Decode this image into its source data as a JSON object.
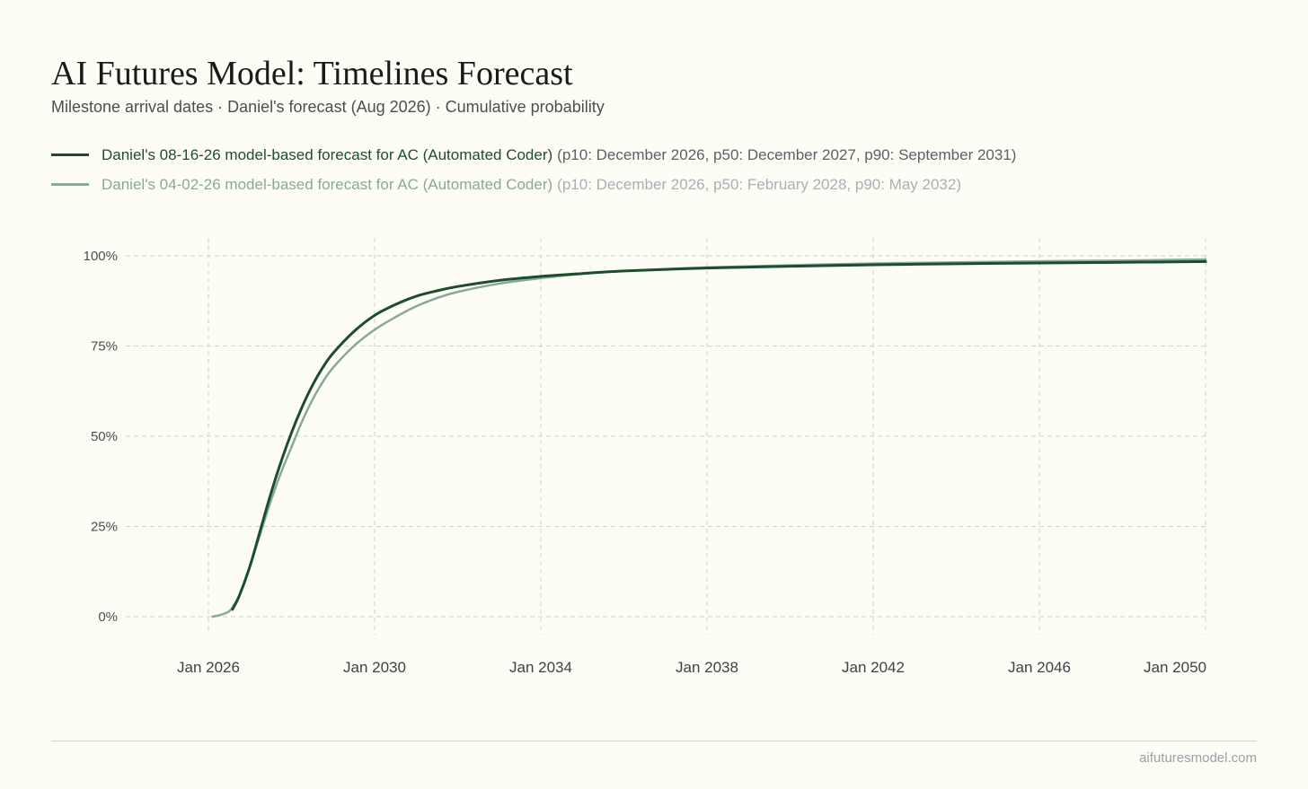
{
  "header": {
    "title": "AI Futures Model: Timelines Forecast",
    "subtitle": "Milestone arrival dates · Daniel's forecast (Aug 2026) · Cumulative probability"
  },
  "legend": [
    {
      "name": "Daniel's 08-16-26 model-based forecast for AC (Automated Coder)",
      "stats": "(p10: December 2026, p50: December 2027, p90: September 2031)",
      "color": "#1e4d2b"
    },
    {
      "name": "Daniel's 04-02-26 model-based forecast for AC (Automated Coder)",
      "stats": "(p10: December 2026, p50: February 2028, p90: May 2032)",
      "color": "#8aa89a"
    }
  ],
  "chart_data": {
    "type": "line",
    "xlabel": "",
    "ylabel": "",
    "xlim": [
      2025.8,
      2050.2
    ],
    "ylim": [
      0,
      100
    ],
    "x_ticks": [
      {
        "value": 2026,
        "label": "Jan 2026"
      },
      {
        "value": 2030,
        "label": "Jan 2030"
      },
      {
        "value": 2034,
        "label": "Jan 2034"
      },
      {
        "value": 2038,
        "label": "Jan 2038"
      },
      {
        "value": 2042,
        "label": "Jan 2042"
      },
      {
        "value": 2046,
        "label": "Jan 2046"
      },
      {
        "value": 2050,
        "label": "Jan 2050"
      }
    ],
    "y_ticks": [
      {
        "value": 0,
        "label": "0%"
      },
      {
        "value": 25,
        "label": "25%"
      },
      {
        "value": 50,
        "label": "50%"
      },
      {
        "value": 75,
        "label": "75%"
      },
      {
        "value": 100,
        "label": "100%"
      }
    ],
    "grid": true,
    "legend_position": "top-left",
    "series": [
      {
        "name": "Daniel's 08-16-26 model-based forecast for AC (Automated Coder)",
        "color": "#1e4d2b",
        "x": [
          2026.58,
          2026.75,
          2027.0,
          2027.25,
          2027.5,
          2027.75,
          2028.0,
          2028.25,
          2028.5,
          2028.75,
          2029.0,
          2029.5,
          2030.0,
          2030.5,
          2031.0,
          2031.5,
          2032.0,
          2033.0,
          2034.0,
          2035.0,
          2036.0,
          2038.0,
          2040.0,
          2042.0,
          2044.0,
          2046.0,
          2048.0,
          2050.0
        ],
        "y": [
          2,
          6,
          14,
          24,
          34,
          43,
          51,
          58,
          64,
          69,
          73,
          79,
          83.5,
          86.5,
          88.8,
          90.3,
          91.5,
          93.2,
          94.3,
          95.1,
          95.8,
          96.6,
          97.1,
          97.5,
          97.8,
          98.0,
          98.2,
          98.4
        ]
      },
      {
        "name": "Daniel's 04-02-26 model-based forecast for AC (Automated Coder)",
        "color": "#8aa89a",
        "x": [
          2026.1,
          2026.3,
          2026.5,
          2026.6,
          2026.75,
          2027.0,
          2027.25,
          2027.5,
          2027.75,
          2028.0,
          2028.25,
          2028.5,
          2028.75,
          2029.0,
          2029.5,
          2030.0,
          2030.5,
          2031.0,
          2031.5,
          2032.0,
          2033.0,
          2034.0,
          2035.0,
          2036.0,
          2038.0,
          2040.0,
          2042.0,
          2044.0,
          2046.0,
          2048.0,
          2050.0
        ],
        "y": [
          0,
          0.5,
          1.5,
          3,
          6,
          14,
          23,
          32,
          40,
          47,
          54,
          60,
          65,
          69,
          75,
          79.5,
          83,
          86,
          88.3,
          90,
          92.3,
          93.8,
          95,
          95.8,
          96.8,
          97.4,
          97.9,
          98.2,
          98.5,
          98.7,
          99.0
        ]
      }
    ]
  },
  "footer": {
    "site": "aifuturesmodel.com"
  }
}
